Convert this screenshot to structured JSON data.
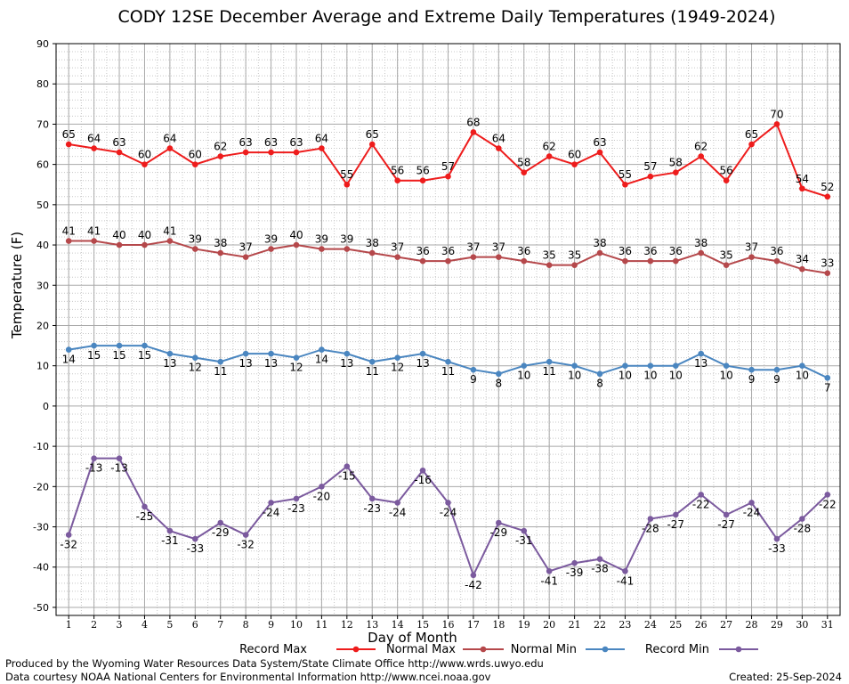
{
  "chart_data": {
    "type": "line",
    "title": "CODY 12SE December Average and Extreme Daily Temperatures (1949-2024)",
    "xlabel": "Day of Month",
    "ylabel": "Temperature (F)",
    "xlim": [
      0.5,
      31.5
    ],
    "ylim": [
      -52,
      90
    ],
    "yticks": [
      90,
      80,
      70,
      60,
      50,
      40,
      30,
      20,
      10,
      0,
      -10,
      -20,
      -30,
      -40,
      -50
    ],
    "grid": true,
    "legend_position": "bottom",
    "categories": [
      1,
      2,
      3,
      4,
      5,
      6,
      7,
      8,
      9,
      10,
      11,
      12,
      13,
      14,
      15,
      16,
      17,
      18,
      19,
      20,
      21,
      22,
      23,
      24,
      25,
      26,
      27,
      28,
      29,
      30,
      31
    ],
    "series": [
      {
        "name": "Record Max",
        "color": "#ee1c1c",
        "label_pos": "above",
        "values": [
          65,
          64,
          63,
          60,
          64,
          60,
          62,
          63,
          63,
          63,
          64,
          55,
          65,
          56,
          56,
          57,
          68,
          64,
          58,
          62,
          60,
          63,
          55,
          57,
          58,
          62,
          56,
          65,
          70,
          54,
          52
        ]
      },
      {
        "name": "Normal Max",
        "color": "#b5484b",
        "label_pos": "above",
        "values": [
          41,
          41,
          40,
          40,
          41,
          39,
          38,
          37,
          39,
          40,
          39,
          39,
          38,
          37,
          36,
          36,
          37,
          37,
          36,
          35,
          35,
          38,
          36,
          36,
          36,
          38,
          35,
          37,
          36,
          34,
          33
        ]
      },
      {
        "name": "Normal Min",
        "color": "#4a86c0",
        "label_pos": "below",
        "values": [
          14,
          15,
          15,
          15,
          13,
          12,
          11,
          13,
          13,
          12,
          14,
          13,
          11,
          12,
          13,
          11,
          9,
          8,
          10,
          11,
          10,
          8,
          10,
          10,
          10,
          13,
          10,
          9,
          9,
          10,
          7
        ]
      },
      {
        "name": "Record Min",
        "color": "#7b5a9e",
        "label_pos": "below",
        "values": [
          -32,
          -13,
          -13,
          -25,
          -31,
          -33,
          -29,
          -32,
          -24,
          -23,
          -20,
          -15,
          -23,
          -24,
          -16,
          -24,
          -42,
          -29,
          -31,
          -41,
          -39,
          -38,
          -41,
          -28,
          -27,
          -22,
          -27,
          -24,
          -33,
          -28,
          -22
        ]
      }
    ]
  },
  "footer": {
    "credit_1": "Produced by the Wyoming Water Resources Data System/State Climate Office http://www.wrds.uwyo.edu",
    "credit_2": "Data courtesy NOAA National Centers for Environmental Information http://www.ncei.noaa.gov",
    "created": "Created: 25-Sep-2024"
  }
}
